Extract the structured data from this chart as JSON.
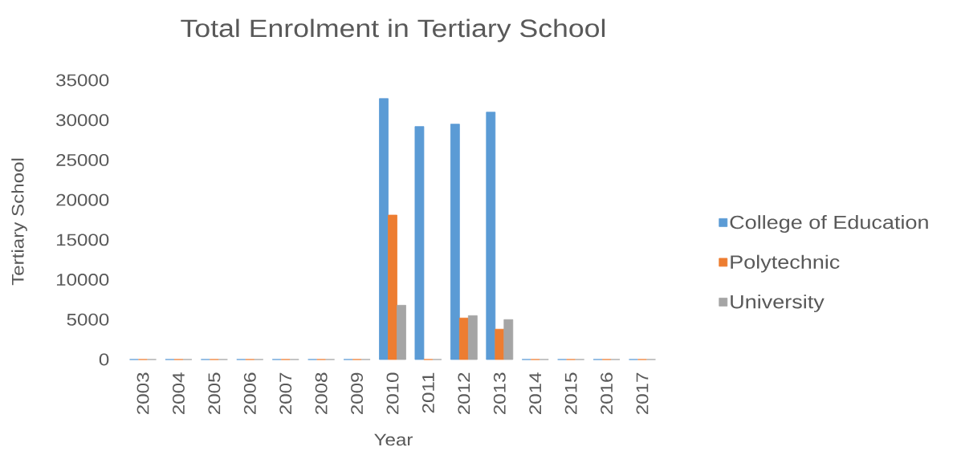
{
  "chart_data": {
    "type": "bar",
    "title": "Total Enrolment in Tertiary School",
    "xlabel": "Year",
    "ylabel": "Tertiary School",
    "categories": [
      "2003",
      "2004",
      "2005",
      "2006",
      "2007",
      "2008",
      "2009",
      "2010",
      "2011",
      "2012",
      "2013",
      "2014",
      "2015",
      "2016",
      "2017"
    ],
    "series": [
      {
        "name": "College of Education",
        "color": "#5b9bd5",
        "values": [
          0,
          0,
          0,
          0,
          0,
          0,
          0,
          32700,
          29200,
          29500,
          31000,
          0,
          0,
          0,
          0
        ]
      },
      {
        "name": "Polytechnic",
        "color": "#ed7d31",
        "values": [
          0,
          0,
          0,
          0,
          0,
          0,
          0,
          18100,
          0,
          5200,
          3800,
          0,
          0,
          0,
          0
        ]
      },
      {
        "name": "University",
        "color": "#a5a5a5",
        "values": [
          0,
          0,
          0,
          0,
          0,
          0,
          0,
          6800,
          0,
          5500,
          5000,
          0,
          0,
          0,
          0
        ]
      }
    ],
    "ylim": [
      0,
      35000
    ],
    "yticks": [
      0,
      5000,
      10000,
      15000,
      20000,
      25000,
      30000,
      35000
    ],
    "legend": "right"
  }
}
